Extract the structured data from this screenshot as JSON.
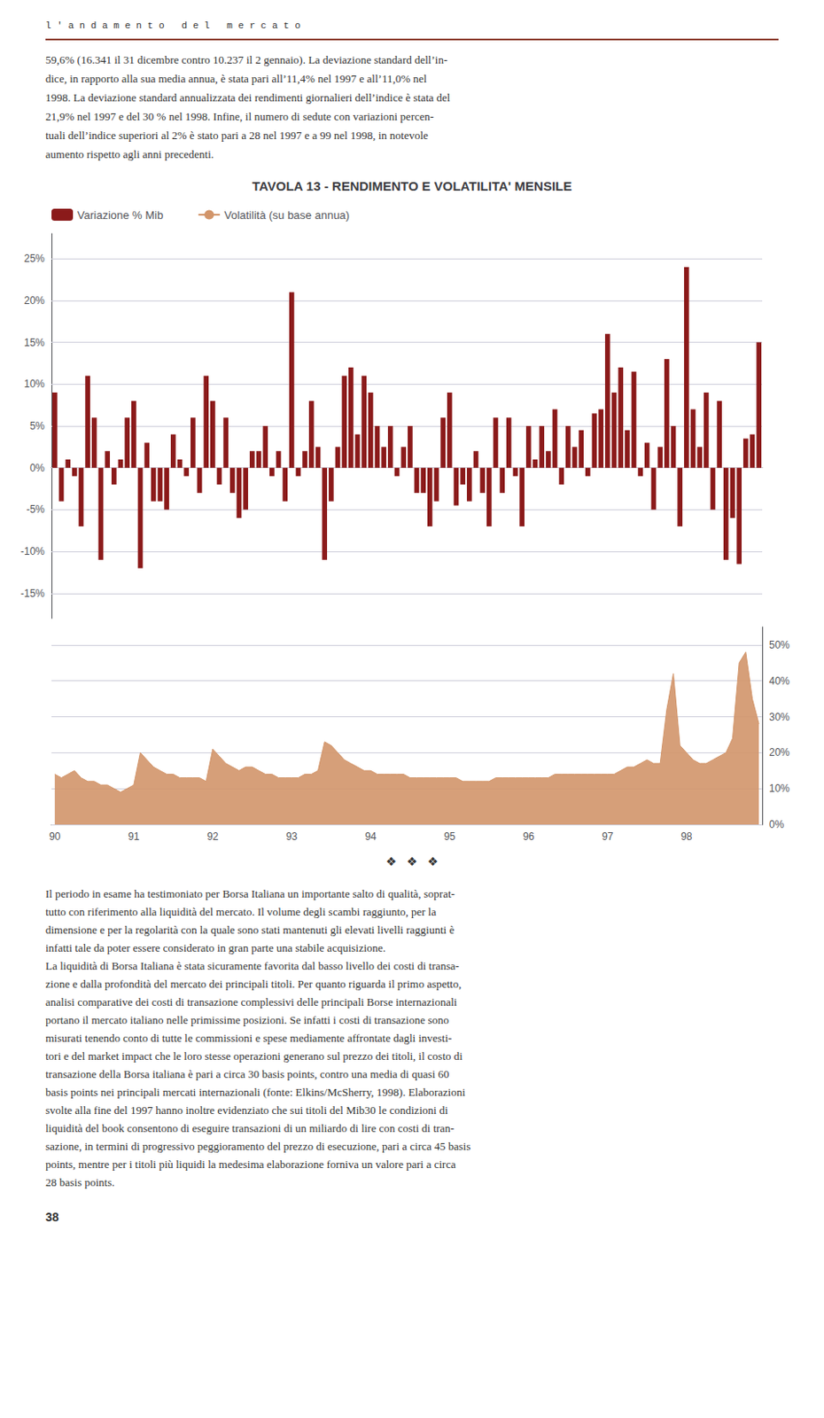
{
  "chart_data": [
    {
      "type": "bar",
      "title": "TAVOLA 13 - RENDIMENTO E VOLATILITA' MENSILE",
      "annotations": [
        "l ' a n d a m e n t o   d e l   m e r c a t o",
        "59,6% (16.341 il 31 dicembre contro 10.237 il 2 gennaio). La deviazione standard dell’in-\ndice, in rapporto alla sua media annua, è stata pari all’11,4% nel 1997 e all’11,0% nel\n1998. La deviazione standard annualizzata dei rendimenti giornalieri dell’indice è stata del\n21,9% nel 1997 e del 30 % nel 1998. Infine, il numero di sedute con variazioni percen-\ntuali dell’indice superiori al 2% è stato pari a 28 nel 1997 e a 99 nel 1998, in notevole\naumento rispetto agli anni precedenti."
      ],
      "categories": [
        "90",
        null,
        null,
        null,
        null,
        null,
        null,
        null,
        null,
        null,
        null,
        null,
        "91",
        null,
        null,
        null,
        null,
        null,
        null,
        null,
        null,
        null,
        null,
        null,
        "92",
        null,
        null,
        null,
        null,
        null,
        null,
        null,
        null,
        null,
        null,
        null,
        "93",
        null,
        null,
        null,
        null,
        null,
        null,
        null,
        null,
        null,
        null,
        null,
        "94",
        null,
        null,
        null,
        null,
        null,
        null,
        null,
        null,
        null,
        null,
        null,
        "95",
        null,
        null,
        null,
        null,
        null,
        null,
        null,
        null,
        null,
        null,
        null,
        "96",
        null,
        null,
        null,
        null,
        null,
        null,
        null,
        null,
        null,
        null,
        null,
        "97",
        null,
        null,
        null,
        null,
        null,
        null,
        null,
        null,
        null,
        null,
        null,
        "98",
        null,
        null,
        null,
        null,
        null,
        null,
        null,
        null,
        null,
        null,
        null
      ],
      "series": [
        {
          "name": "Variazione % Mib",
          "color": "#8B1A1A",
          "values": [
            0.09,
            -0.04,
            0.01,
            -0.01,
            -0.07,
            0.11,
            0.06,
            -0.11,
            0.02,
            -0.02,
            0.01,
            0.06,
            0.08,
            -0.12,
            0.03,
            -0.04,
            -0.04,
            -0.05,
            0.04,
            0.01,
            -0.01,
            0.06,
            -0.03,
            0.11,
            0.08,
            -0.02,
            0.06,
            -0.03,
            -0.06,
            -0.05,
            0.02,
            0.02,
            0.05,
            -0.01,
            0.02,
            -0.04,
            0.21,
            -0.01,
            0.02,
            0.08,
            0.025,
            -0.11,
            -0.04,
            0.025,
            0.11,
            0.12,
            0.04,
            0.11,
            0.09,
            0.05,
            0.025,
            0.05,
            -0.01,
            0.025,
            0.05,
            -0.03,
            -0.03,
            -0.07,
            -0.04,
            0.06,
            0.09,
            -0.045,
            -0.02,
            -0.04,
            0.02,
            -0.03,
            -0.07,
            0.06,
            -0.03,
            0.06,
            -0.01,
            -0.07,
            0.05,
            0.01,
            0.05,
            0.02,
            0.07,
            -0.02,
            0.05,
            0.025,
            0.045,
            -0.01,
            0.065,
            0.07,
            0.16,
            0.09,
            0.12,
            0.045,
            0.115,
            -0.01,
            0.03,
            -0.05,
            0.025,
            0.13,
            0.05,
            -0.07,
            0.24,
            0.07,
            0.025,
            0.09,
            -0.05,
            0.08,
            -0.11,
            -0.06,
            -0.115,
            0.035,
            0.04,
            0.15
          ]
        }
      ],
      "ylim": [
        -0.18,
        0.28
      ],
      "yticks": [
        {
          "value": -0.15,
          "label": "-15%"
        },
        {
          "value": -0.1,
          "label": "-10%"
        },
        {
          "value": -0.05,
          "label": "-5%"
        },
        {
          "value": 0,
          "label": "0%"
        },
        {
          "value": 0.05,
          "label": "5%"
        },
        {
          "value": 0.1,
          "label": "10%"
        },
        {
          "value": 0.15,
          "label": "15%"
        },
        {
          "value": 0.2,
          "label": "20%"
        },
        {
          "value": 0.25,
          "label": "25%"
        }
      ],
      "grid": true,
      "legend": "top-left",
      "tick_labels": "y"
    },
    {
      "type": "area",
      "annotations": [
        "❖   ❖   ❖",
        "Il periodo in esame ha testimoniato per Borsa Italiana un importante salto di qualità, soprat-\ntutto con riferimento alla liquidità del mercato. Il volume degli scambi raggiunto, per la\ndimensione e per la regolarità con la quale sono stati mantenuti gli elevati livelli raggiunti è\ninfatti tale da poter essere considerato in gran parte una stabile acquisizione.\nLa liquidità di Borsa Italiana è stata sicuramente favorita dal basso livello dei costi di transa-\nzione e dalla profondità del mercato dei principali titoli. Per quanto riguarda il primo aspetto,\nanalisi comparative dei costi di transazione complessivi delle principali Borse internazionali\nportano il mercato italiano nelle primissime posizioni. Se infatti i costi di transazione sono\nmisurati tenendo conto di tutte le commissioni e spese mediamente affrontate dagli investi-\ntori e del market impact che le loro stesse operazioni generano sul prezzo dei titoli, il costo di\ntransazione della Borsa italiana è pari a circa 30 basis points, contro una media di quasi 60\nbasis points nei principali mercati internazionali (fonte: Elkins/McSherry, 1998). Elaborazioni\nsvolte alla fine del 1997 hanno inoltre evidenziato che sui titoli del Mib30 le condizioni di\nliquidità del book consentono di eseguire transazioni di un miliardo di lire con costi di tran-\nsazione, in termini di progressivo peggioramento del prezzo di esecuzione, pari a circa 45 basis\npoints, mentre per i titoli più liquidi la medesima elaborazione forniva un valore pari a circa\n28 basis points.",
        "38"
      ],
      "categories": [
        "90",
        null,
        null,
        null,
        null,
        null,
        null,
        null,
        null,
        null,
        null,
        null,
        "91",
        null,
        null,
        null,
        null,
        null,
        null,
        null,
        null,
        null,
        null,
        null,
        "92",
        null,
        null,
        null,
        null,
        null,
        null,
        null,
        null,
        null,
        null,
        null,
        "93",
        null,
        null,
        null,
        null,
        null,
        null,
        null,
        null,
        null,
        null,
        null,
        "94",
        null,
        null,
        null,
        null,
        null,
        null,
        null,
        null,
        null,
        null,
        null,
        "95",
        null,
        null,
        null,
        null,
        null,
        null,
        null,
        null,
        null,
        null,
        null,
        "96",
        null,
        null,
        null,
        null,
        null,
        null,
        null,
        null,
        null,
        null,
        null,
        "97",
        null,
        null,
        null,
        null,
        null,
        null,
        null,
        null,
        null,
        null,
        null,
        "98",
        null,
        null,
        null,
        null,
        null,
        null,
        null,
        null,
        null,
        null,
        null
      ],
      "series": [
        {
          "name": "Volatilità (su base annua)",
          "color": "#D2956A",
          "values": [
            0.14,
            0.13,
            0.14,
            0.15,
            0.13,
            0.12,
            0.12,
            0.11,
            0.11,
            0.1,
            0.09,
            0.1,
            0.11,
            0.2,
            0.18,
            0.16,
            0.15,
            0.14,
            0.14,
            0.13,
            0.13,
            0.13,
            0.13,
            0.12,
            0.21,
            0.19,
            0.17,
            0.16,
            0.15,
            0.16,
            0.16,
            0.15,
            0.14,
            0.14,
            0.13,
            0.13,
            0.13,
            0.13,
            0.14,
            0.14,
            0.15,
            0.23,
            0.22,
            0.2,
            0.18,
            0.17,
            0.16,
            0.15,
            0.15,
            0.14,
            0.14,
            0.14,
            0.14,
            0.14,
            0.13,
            0.13,
            0.13,
            0.13,
            0.13,
            0.13,
            0.13,
            0.13,
            0.12,
            0.12,
            0.12,
            0.12,
            0.12,
            0.13,
            0.13,
            0.13,
            0.13,
            0.13,
            0.13,
            0.13,
            0.13,
            0.13,
            0.14,
            0.14,
            0.14,
            0.14,
            0.14,
            0.14,
            0.14,
            0.14,
            0.14,
            0.14,
            0.15,
            0.16,
            0.16,
            0.17,
            0.18,
            0.17,
            0.17,
            0.32,
            0.42,
            0.22,
            0.2,
            0.18,
            0.17,
            0.17,
            0.18,
            0.19,
            0.2,
            0.24,
            0.45,
            0.48,
            0.35,
            0.28
          ]
        }
      ],
      "ylim": [
        0,
        0.55
      ],
      "yticks": [
        {
          "value": 0,
          "label": "0%"
        },
        {
          "value": 0.1,
          "label": "10%"
        },
        {
          "value": 0.2,
          "label": "20%"
        },
        {
          "value": 0.3,
          "label": "30%"
        },
        {
          "value": 0.4,
          "label": "40%"
        },
        {
          "value": 0.5,
          "label": "50%"
        }
      ],
      "grid": true,
      "legend": "top-left"
    }
  ]
}
